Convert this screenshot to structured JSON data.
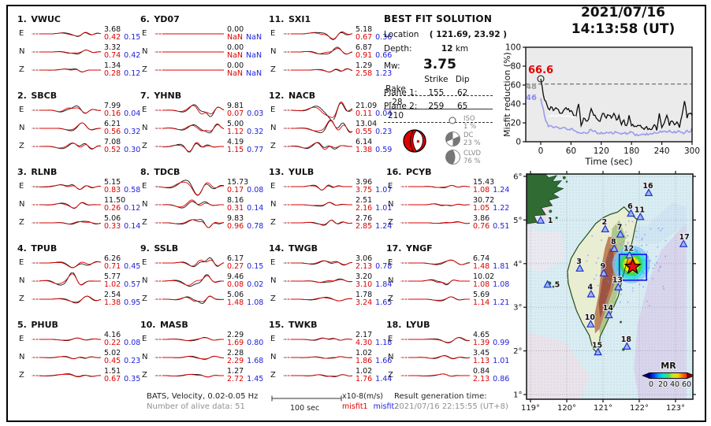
{
  "header": {
    "date": "2021/07/16",
    "time": "14:13:58  (UT)"
  },
  "best_fit": {
    "title": "BEST FIT SOLUTION",
    "location_label": "Location",
    "location_value": "( 121.69,  23.92 )",
    "depth_label": "Depth:",
    "depth_value": "12",
    "depth_unit": "km",
    "mw_label": "Mw:",
    "mw_value": "3.75",
    "table": {
      "headers": [
        "Strike",
        "Dip",
        "Rake"
      ],
      "rows": [
        {
          "label": "Plane 1:",
          "strike": "155",
          "dip": "62",
          "rake": "-28"
        },
        {
          "label": "Plane 2:",
          "strike": "259",
          "dip": "65",
          "rake": "210"
        }
      ]
    },
    "decomposition": [
      {
        "name": "ISO",
        "pct": "1 %"
      },
      {
        "name": "DC",
        "pct": "23 %"
      },
      {
        "name": "CLVD",
        "pct": "76 %"
      }
    ]
  },
  "stations": [
    {
      "num": "1.",
      "code": "VWUC",
      "rows": [
        {
          "comp": "E",
          "amp": "3.68",
          "m1": "0.42",
          "m2": "0.15"
        },
        {
          "comp": "N",
          "amp": "3.32",
          "m1": "0.74",
          "m2": "0.42"
        },
        {
          "comp": "Z",
          "amp": "1.34",
          "m1": "0.28",
          "m2": "0.12"
        }
      ]
    },
    {
      "num": "2.",
      "code": "SBCB",
      "rows": [
        {
          "comp": "E",
          "amp": "7.99",
          "m1": "0.16",
          "m2": "0.04"
        },
        {
          "comp": "N",
          "amp": "6.21",
          "m1": "0.56",
          "m2": "0.32"
        },
        {
          "comp": "Z",
          "amp": "7.08",
          "m1": "0.52",
          "m2": "0.30"
        }
      ]
    },
    {
      "num": "3.",
      "code": "RLNB",
      "rows": [
        {
          "comp": "E",
          "amp": "5.15",
          "m1": "0.83",
          "m2": "0.58"
        },
        {
          "comp": "N",
          "amp": "11.50",
          "m1": "0.26",
          "m2": "0.12"
        },
        {
          "comp": "Z",
          "amp": "5.06",
          "m1": "0.33",
          "m2": "0.14"
        }
      ]
    },
    {
      "num": "4.",
      "code": "TPUB",
      "rows": [
        {
          "comp": "E",
          "amp": "6.26",
          "m1": "0.71",
          "m2": "0.45"
        },
        {
          "comp": "N",
          "amp": "5.77",
          "m1": "1.02",
          "m2": "0.57"
        },
        {
          "comp": "Z",
          "amp": "2.54",
          "m1": "1.38",
          "m2": "0.95"
        }
      ]
    },
    {
      "num": "5.",
      "code": "PHUB",
      "rows": [
        {
          "comp": "E",
          "amp": "4.16",
          "m1": "0.22",
          "m2": "0.08"
        },
        {
          "comp": "N",
          "amp": "5.02",
          "m1": "0.45",
          "m2": "0.23"
        },
        {
          "comp": "Z",
          "amp": "1.51",
          "m1": "0.67",
          "m2": "0.35"
        }
      ]
    },
    {
      "num": "6.",
      "code": "YD07",
      "rows": [
        {
          "comp": "E",
          "amp": "0.00",
          "m1": "NaN",
          "m2": "NaN"
        },
        {
          "comp": "N",
          "amp": "0.00",
          "m1": "NaN",
          "m2": "NaN"
        },
        {
          "comp": "Z",
          "amp": "0.00",
          "m1": "NaN",
          "m2": "NaN"
        }
      ]
    },
    {
      "num": "7.",
      "code": "YHNB",
      "rows": [
        {
          "comp": "E",
          "amp": "9.81",
          "m1": "0.07",
          "m2": "0.03"
        },
        {
          "comp": "N",
          "amp": "5.00",
          "m1": "1.12",
          "m2": "0.32"
        },
        {
          "comp": "Z",
          "amp": "4.19",
          "m1": "1.15",
          "m2": "0.77"
        }
      ]
    },
    {
      "num": "8.",
      "code": "TDCB",
      "rows": [
        {
          "comp": "E",
          "amp": "15.73",
          "m1": "0.17",
          "m2": "0.08"
        },
        {
          "comp": "N",
          "amp": "8.16",
          "m1": "0.31",
          "m2": "0.14"
        },
        {
          "comp": "Z",
          "amp": "9.83",
          "m1": "0.96",
          "m2": "0.78"
        }
      ]
    },
    {
      "num": "9.",
      "code": "SSLB",
      "rows": [
        {
          "comp": "E",
          "amp": "6.17",
          "m1": "0.27",
          "m2": "0.15"
        },
        {
          "comp": "N",
          "amp": "9.46",
          "m1": "0.08",
          "m2": "0.02"
        },
        {
          "comp": "Z",
          "amp": "5.06",
          "m1": "1.48",
          "m2": "1.08"
        }
      ]
    },
    {
      "num": "10.",
      "code": "MASB",
      "rows": [
        {
          "comp": "E",
          "amp": "2.29",
          "m1": "1.69",
          "m2": "0.80"
        },
        {
          "comp": "N",
          "amp": "2.28",
          "m1": "2.29",
          "m2": "1.68"
        },
        {
          "comp": "Z",
          "amp": "1.27",
          "m1": "2.72",
          "m2": "1.45"
        }
      ]
    },
    {
      "num": "11.",
      "code": "SXI1",
      "rows": [
        {
          "comp": "E",
          "amp": "5.18",
          "m1": "0.67",
          "m2": "0.36"
        },
        {
          "comp": "N",
          "amp": "6.87",
          "m1": "0.91",
          "m2": "0.66"
        },
        {
          "comp": "Z",
          "amp": "1.29",
          "m1": "2.58",
          "m2": "1.23"
        }
      ]
    },
    {
      "num": "12.",
      "code": "NACB",
      "rows": [
        {
          "comp": "E",
          "amp": "21.09",
          "m1": "0.11",
          "m2": "0.04"
        },
        {
          "comp": "N",
          "amp": "13.04",
          "m1": "0.55",
          "m2": "0.23"
        },
        {
          "comp": "Z",
          "amp": "6.14",
          "m1": "1.38",
          "m2": "0.59"
        }
      ]
    },
    {
      "num": "13.",
      "code": "YULB",
      "rows": [
        {
          "comp": "E",
          "amp": "3.96",
          "m1": "3.75",
          "m2": "1.07"
        },
        {
          "comp": "N",
          "amp": "2.51",
          "m1": "2.16",
          "m2": "1.01"
        },
        {
          "comp": "Z",
          "amp": "2.76",
          "m1": "2.85",
          "m2": "1.24"
        }
      ]
    },
    {
      "num": "14.",
      "code": "TWGB",
      "rows": [
        {
          "comp": "E",
          "amp": "3.06",
          "m1": "2.13",
          "m2": "0.78"
        },
        {
          "comp": "N",
          "amp": "3.20",
          "m1": "3.10",
          "m2": "1.84"
        },
        {
          "comp": "Z",
          "amp": "1.78",
          "m1": "3.24",
          "m2": "1.65"
        }
      ]
    },
    {
      "num": "15.",
      "code": "TWKB",
      "rows": [
        {
          "comp": "E",
          "amp": "2.17",
          "m1": "4.30",
          "m2": "1.18"
        },
        {
          "comp": "N",
          "amp": "1.02",
          "m1": "1.86",
          "m2": "1.66"
        },
        {
          "comp": "Z",
          "amp": "1.02",
          "m1": "1.76",
          "m2": "1.44"
        }
      ]
    },
    {
      "num": "16.",
      "code": "PCYB",
      "rows": [
        {
          "comp": "E",
          "amp": "15.43",
          "m1": "1.08",
          "m2": "1.24"
        },
        {
          "comp": "N",
          "amp": "30.72",
          "m1": "1.05",
          "m2": "1.22"
        },
        {
          "comp": "Z",
          "amp": "3.86",
          "m1": "0.76",
          "m2": "0.51"
        }
      ]
    },
    {
      "num": "17.",
      "code": "YNGF",
      "rows": [
        {
          "comp": "E",
          "amp": "6.74",
          "m1": "1.48",
          "m2": "1.81"
        },
        {
          "comp": "N",
          "amp": "10.02",
          "m1": "1.08",
          "m2": "1.08"
        },
        {
          "comp": "Z",
          "amp": "5.69",
          "m1": "1.14",
          "m2": "1.21"
        }
      ]
    },
    {
      "num": "18.",
      "code": "LYUB",
      "rows": [
        {
          "comp": "E",
          "amp": "4.65",
          "m1": "1.39",
          "m2": "0.99"
        },
        {
          "comp": "N",
          "amp": "3.45",
          "m1": "1.13",
          "m2": "1.01"
        },
        {
          "comp": "Z",
          "amp": "0.84",
          "m1": "2.13",
          "m2": "0.86"
        }
      ]
    }
  ],
  "footer": {
    "line1": "BATS, Velocity, 0.02-0.05 Hz",
    "line2": "Number of alive data: 51",
    "scale_label": "100 sec",
    "amp_units": "x10-8(m/s)",
    "misfit1_label": "misfit1",
    "misfit2_label": "misfit2",
    "result_label": "Result generation time:",
    "result_time": "2021/07/16 22:15:55 (UT+8)"
  },
  "colors": {
    "misfit1": "#e00000",
    "misfit2": "#2020dd",
    "best_value": "#e00000",
    "blue_trace": "#9a9af0",
    "gray_text": "#909090"
  },
  "chart_data": [
    {
      "type": "line",
      "title": "2021/07/16 14:13:58 (UT)",
      "xlabel": "Time (sec)",
      "ylabel": "Misfit reduction (%)",
      "xlim": [
        0,
        300
      ],
      "ylim": [
        0,
        100
      ],
      "x_ticks": [
        0,
        60,
        120,
        180,
        240,
        300
      ],
      "y_ticks": [
        0,
        20,
        40,
        60,
        80,
        100
      ],
      "x_step": 5,
      "annotations": {
        "best_value": "66.6",
        "gray_value": "48",
        "blue_value": "46",
        "dashed_y": 61
      },
      "series": [
        {
          "name": "misfit-reduction-black",
          "values": [
            66.6,
            50,
            43,
            35,
            37,
            33,
            36,
            34,
            30,
            33,
            36,
            35,
            33,
            28,
            27,
            40,
            17,
            25,
            22,
            24,
            35,
            28,
            25,
            22,
            26,
            30,
            25,
            28,
            25,
            30,
            23,
            28,
            18,
            23,
            17,
            28,
            17,
            16,
            16,
            17,
            15,
            13,
            16,
            14,
            13,
            18,
            12,
            30,
            15,
            20,
            28,
            17,
            22,
            18,
            21,
            15,
            28,
            43,
            25,
            30,
            28
          ]
        },
        {
          "name": "misfit-reduction-blue",
          "values": [
            46,
            35,
            22,
            16,
            17,
            15,
            16,
            15,
            14,
            15,
            14,
            13,
            14,
            12,
            11,
            10,
            9,
            10,
            9,
            10,
            13,
            11,
            10,
            9,
            10,
            9,
            10,
            9,
            10,
            9,
            10,
            9,
            8,
            9,
            8,
            9,
            10,
            8,
            8,
            7,
            8,
            8,
            9,
            8,
            8,
            10,
            9,
            10,
            10,
            11,
            10,
            12,
            10,
            11,
            10,
            11,
            10,
            9,
            12,
            10,
            15
          ]
        },
        {
          "name": "misfit-reduction-white",
          "x": [
            15,
            22,
            30,
            38,
            46,
            54,
            62,
            70
          ],
          "values": [
            26,
            28,
            27,
            28,
            26.5,
            27.5,
            26,
            27
          ]
        }
      ]
    },
    {
      "type": "map",
      "lon_ticks": [
        "119°",
        "120°",
        "121°",
        "122°",
        "123°"
      ],
      "lat_ticks": [
        "26°",
        "25°",
        "24°",
        "23°",
        "22°",
        "21°"
      ],
      "lon_tick_vals": [
        119,
        120,
        121,
        122,
        123
      ],
      "lat_tick_vals": [
        26,
        25,
        24,
        23,
        22,
        21
      ],
      "colorbar": {
        "label": "MR",
        "ticks": [
          "0",
          "20",
          "40",
          "60"
        ]
      },
      "epicenter": {
        "lon": 121.82,
        "lat": 23.93
      },
      "search_box": {
        "lon_min": 121.45,
        "lat_min": 23.62,
        "lon_max": 122.2,
        "lat_max": 24.21
      },
      "stations": [
        {
          "num": "1",
          "lon": 119.28,
          "lat": 24.99
        },
        {
          "num": "2",
          "lon": 121.06,
          "lat": 24.79
        },
        {
          "num": "3",
          "lon": 120.36,
          "lat": 23.89
        },
        {
          "num": "4",
          "lon": 120.67,
          "lat": 23.3
        },
        {
          "num": "5",
          "lon": 119.47,
          "lat": 23.52
        },
        {
          "num": "6",
          "lon": 121.77,
          "lat": 25.15
        },
        {
          "num": "7",
          "lon": 121.48,
          "lat": 24.67
        },
        {
          "num": "8",
          "lon": 121.31,
          "lat": 24.34
        },
        {
          "num": "9",
          "lon": 121.02,
          "lat": 23.78
        },
        {
          "num": "10",
          "lon": 120.66,
          "lat": 22.61
        },
        {
          "num": "11",
          "lon": 122.03,
          "lat": 25.07
        },
        {
          "num": "12",
          "lon": 121.73,
          "lat": 24.19
        },
        {
          "num": "13",
          "lon": 121.42,
          "lat": 23.46
        },
        {
          "num": "14",
          "lon": 121.16,
          "lat": 22.82
        },
        {
          "num": "15",
          "lon": 120.86,
          "lat": 21.97
        },
        {
          "num": "16",
          "lon": 122.26,
          "lat": 25.62
        },
        {
          "num": "17",
          "lon": 123.22,
          "lat": 24.45
        },
        {
          "num": "18",
          "lon": 121.66,
          "lat": 22.1
        }
      ]
    }
  ]
}
